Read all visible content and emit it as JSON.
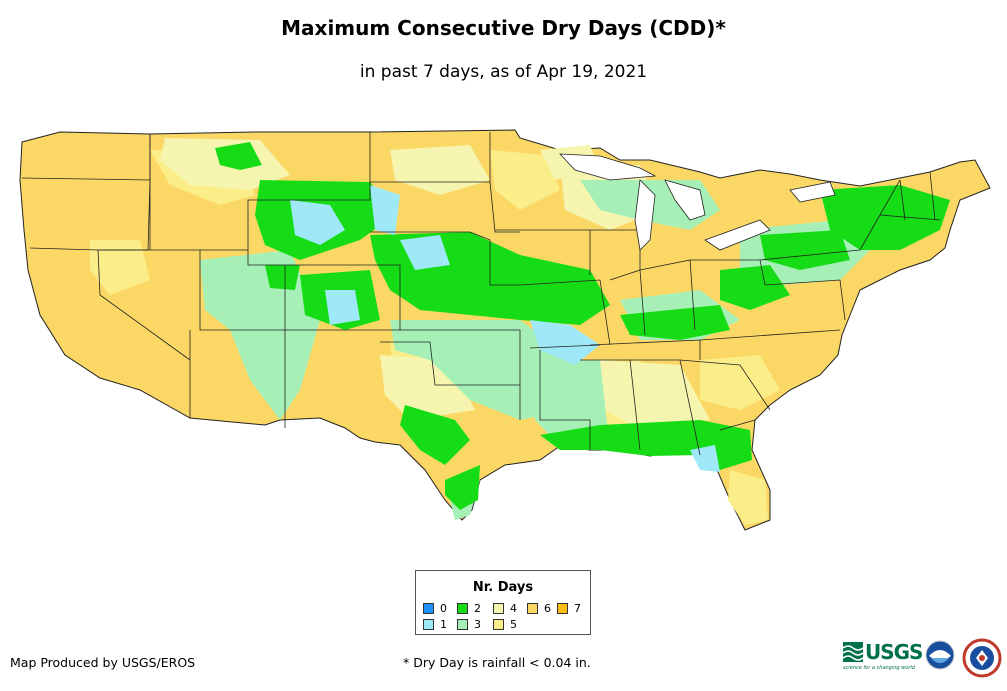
{
  "title": "Maximum Consecutive Dry Days (CDD)*",
  "subtitle": "in past 7 days, as of Apr 19, 2021",
  "legend": {
    "title": "Nr. Days",
    "items": [
      {
        "label": "0",
        "color": "#1e90ff"
      },
      {
        "label": "1",
        "color": "#9ee8f8"
      },
      {
        "label": "2",
        "color": "#16dc16"
      },
      {
        "label": "3",
        "color": "#a6f0b8"
      },
      {
        "label": "4",
        "color": "#f5f5b0"
      },
      {
        "label": "5",
        "color": "#fbee88"
      },
      {
        "label": "6",
        "color": "#fbd865"
      },
      {
        "label": "7",
        "color": "#fbbc14"
      }
    ]
  },
  "footer": {
    "credit": "Map Produced by USGS/EROS",
    "note": "* Dry Day is rainfall < 0.04 in."
  },
  "logos": {
    "usgs_text": "USGS",
    "usgs_tagline": "science for a changing world"
  }
}
